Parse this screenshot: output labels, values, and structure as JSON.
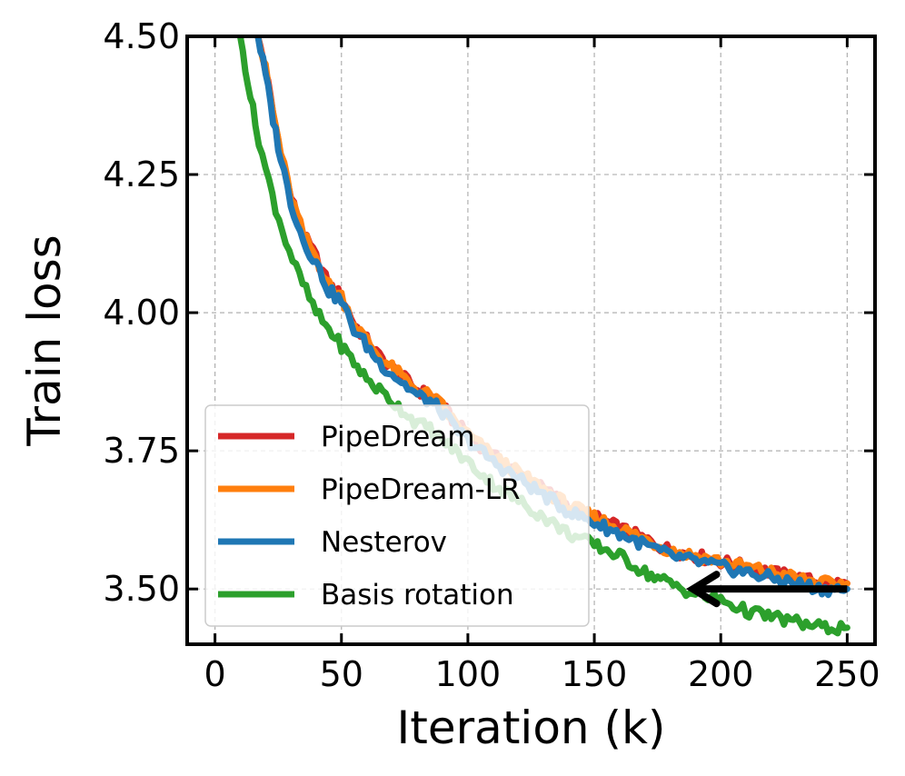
{
  "chart_data": {
    "type": "line",
    "title": "",
    "xlabel": "Iteration (k)",
    "ylabel": "Train loss",
    "xlim": [
      -11,
      261
    ],
    "ylim": [
      3.4,
      4.5
    ],
    "xticks": [
      0,
      50,
      100,
      150,
      200,
      250
    ],
    "xtick_labels": [
      "0",
      "50",
      "100",
      "150",
      "200",
      "250"
    ],
    "yticks": [
      3.5,
      3.75,
      4.0,
      4.25,
      4.5
    ],
    "ytick_labels": [
      "3.50",
      "3.75",
      "4.00",
      "4.25",
      "4.50"
    ],
    "grid": true,
    "legend_position": "lower-left",
    "series": [
      {
        "name": "PipeDream",
        "color": "#d62728",
        "x": [
          17,
          20,
          23,
          26,
          30,
          35,
          40,
          45,
          50,
          55,
          60,
          65,
          70,
          75,
          80,
          85,
          90,
          95,
          100,
          110,
          120,
          130,
          140,
          150,
          160,
          170,
          180,
          190,
          200,
          210,
          220,
          230,
          240,
          250
        ],
        "y": [
          4.5,
          4.44,
          4.36,
          4.29,
          4.21,
          4.14,
          4.1,
          4.05,
          4.03,
          3.98,
          3.95,
          3.92,
          3.9,
          3.88,
          3.86,
          3.85,
          3.83,
          3.8,
          3.78,
          3.74,
          3.71,
          3.68,
          3.65,
          3.63,
          3.61,
          3.59,
          3.57,
          3.56,
          3.55,
          3.54,
          3.53,
          3.52,
          3.51,
          3.51
        ]
      },
      {
        "name": "PipeDream-LR",
        "color": "#ff7f0e",
        "x": [
          17,
          20,
          23,
          26,
          30,
          35,
          40,
          45,
          50,
          55,
          60,
          65,
          70,
          75,
          80,
          85,
          90,
          95,
          100,
          110,
          120,
          130,
          140,
          150,
          160,
          170,
          180,
          190,
          200,
          210,
          220,
          230,
          240,
          250
        ],
        "y": [
          4.5,
          4.44,
          4.36,
          4.29,
          4.21,
          4.14,
          4.1,
          4.05,
          4.03,
          3.98,
          3.95,
          3.92,
          3.9,
          3.88,
          3.86,
          3.85,
          3.83,
          3.8,
          3.78,
          3.74,
          3.71,
          3.68,
          3.65,
          3.63,
          3.61,
          3.59,
          3.57,
          3.56,
          3.55,
          3.54,
          3.53,
          3.52,
          3.51,
          3.51
        ]
      },
      {
        "name": "Nesterov",
        "color": "#1f77b4",
        "x": [
          17,
          20,
          23,
          26,
          30,
          35,
          40,
          45,
          50,
          55,
          60,
          65,
          70,
          75,
          80,
          85,
          90,
          95,
          100,
          110,
          120,
          130,
          140,
          150,
          160,
          170,
          180,
          190,
          200,
          210,
          220,
          230,
          240,
          250
        ],
        "y": [
          4.5,
          4.43,
          4.35,
          4.28,
          4.2,
          4.13,
          4.09,
          4.04,
          4.02,
          3.97,
          3.94,
          3.91,
          3.89,
          3.87,
          3.85,
          3.84,
          3.82,
          3.79,
          3.77,
          3.73,
          3.7,
          3.67,
          3.64,
          3.62,
          3.6,
          3.58,
          3.56,
          3.55,
          3.54,
          3.53,
          3.52,
          3.51,
          3.5,
          3.5
        ]
      },
      {
        "name": "Basis rotation",
        "color": "#2ca02c",
        "x": [
          10,
          13,
          16,
          20,
          24,
          28,
          32,
          36,
          40,
          45,
          50,
          55,
          60,
          65,
          70,
          75,
          80,
          85,
          90,
          95,
          100,
          110,
          120,
          130,
          140,
          150,
          160,
          170,
          180,
          190,
          200,
          210,
          220,
          230,
          240,
          250
        ],
        "y": [
          4.5,
          4.42,
          4.34,
          4.26,
          4.19,
          4.13,
          4.08,
          4.04,
          4.0,
          3.97,
          3.94,
          3.91,
          3.88,
          3.86,
          3.84,
          3.82,
          3.8,
          3.79,
          3.77,
          3.75,
          3.73,
          3.69,
          3.66,
          3.63,
          3.6,
          3.58,
          3.56,
          3.53,
          3.51,
          3.49,
          3.48,
          3.46,
          3.45,
          3.44,
          3.43,
          3.43
        ]
      }
    ],
    "annotations": [
      {
        "type": "arrow",
        "from": [
          250,
          3.5
        ],
        "to": [
          189,
          3.5
        ],
        "color": "#000000"
      }
    ]
  }
}
